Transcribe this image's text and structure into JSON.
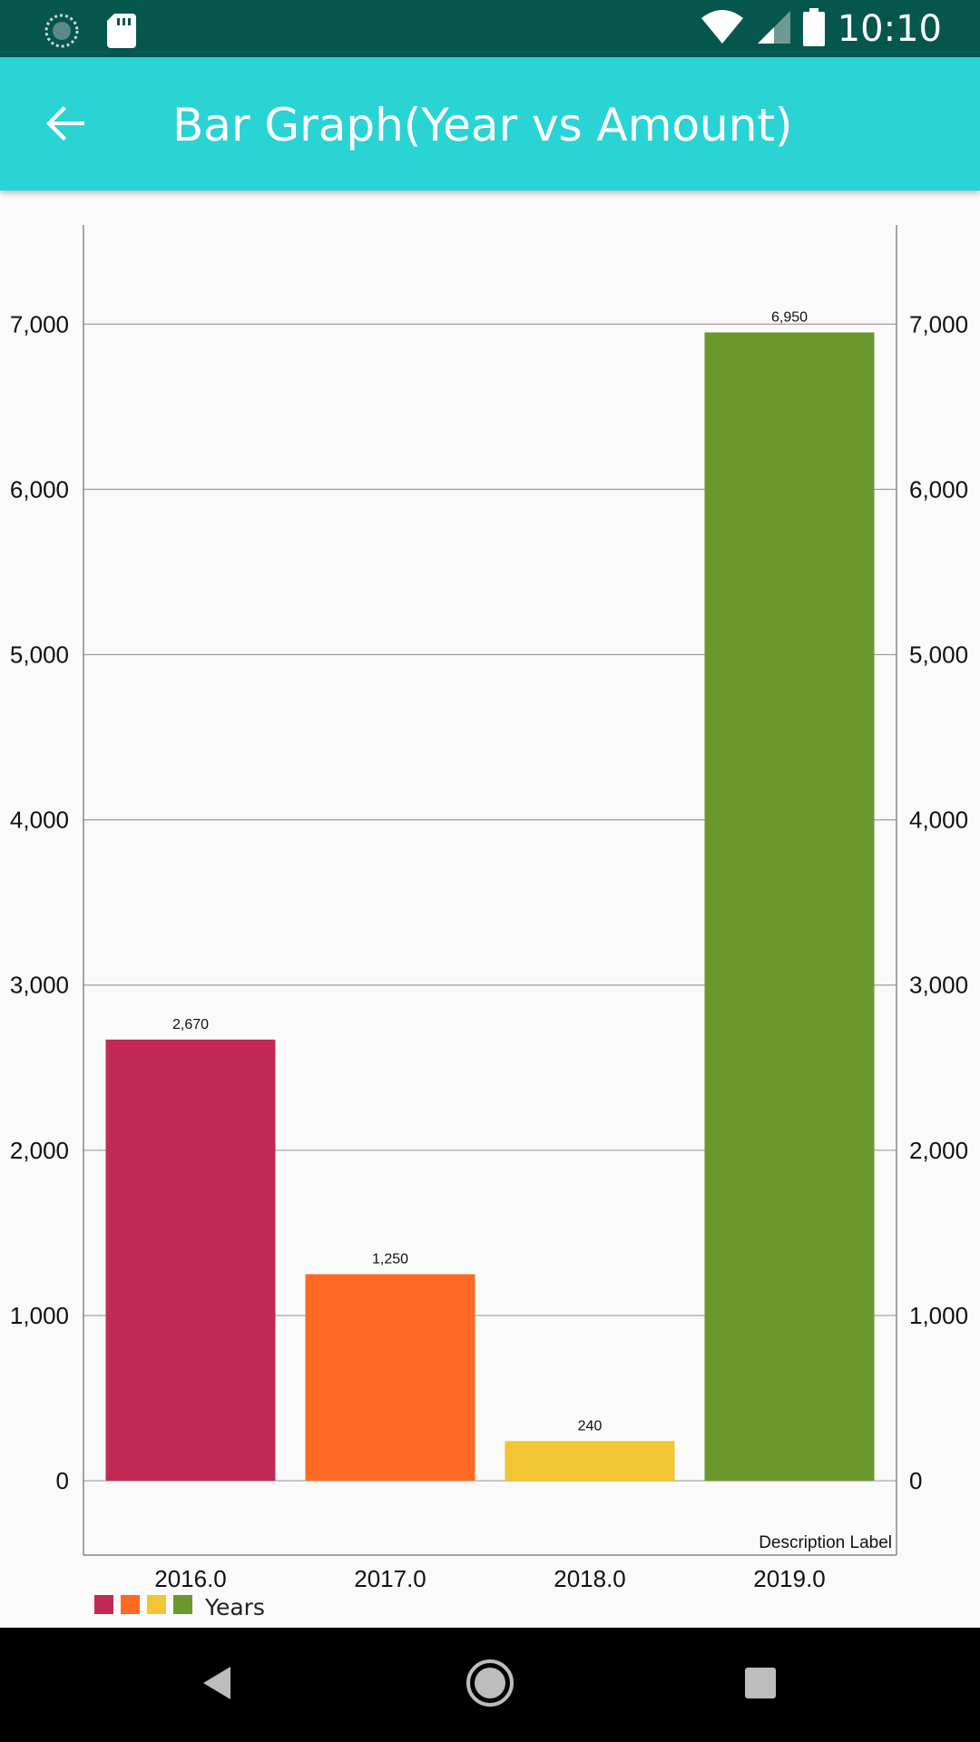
{
  "status_bar": {
    "time": "10:10",
    "icons": [
      "sync-icon",
      "sd-card-icon",
      "wifi-icon",
      "signal-icon",
      "battery-icon"
    ]
  },
  "app_bar": {
    "title": "Bar Graph(Year vs Amount)",
    "back_icon": "arrow-back-icon"
  },
  "chart_data": {
    "type": "bar",
    "categories": [
      "2016.0",
      "2017.0",
      "2018.0",
      "2019.0"
    ],
    "values": [
      2670,
      1250,
      240,
      6950
    ],
    "value_labels": [
      "2,670",
      "1,250",
      "240",
      "6,950"
    ],
    "colors": [
      "#c12a54",
      "#fe6a23",
      "#f2c533",
      "#6b982d"
    ],
    "ylim": [
      -450,
      7600
    ],
    "yticks": [
      0,
      1000,
      2000,
      3000,
      4000,
      5000,
      6000,
      7000
    ],
    "ytick_labels": [
      "0",
      "1,000",
      "2,000",
      "3,000",
      "4,000",
      "5,000",
      "6,000",
      "7,000"
    ],
    "right_axis": true,
    "grid": true,
    "legend": {
      "label": "Years",
      "placement": "bottom-left"
    },
    "description": "Description Label"
  },
  "nav_bar": {
    "icons": [
      "back-triangle-icon",
      "home-circle-icon",
      "recents-square-icon"
    ]
  }
}
